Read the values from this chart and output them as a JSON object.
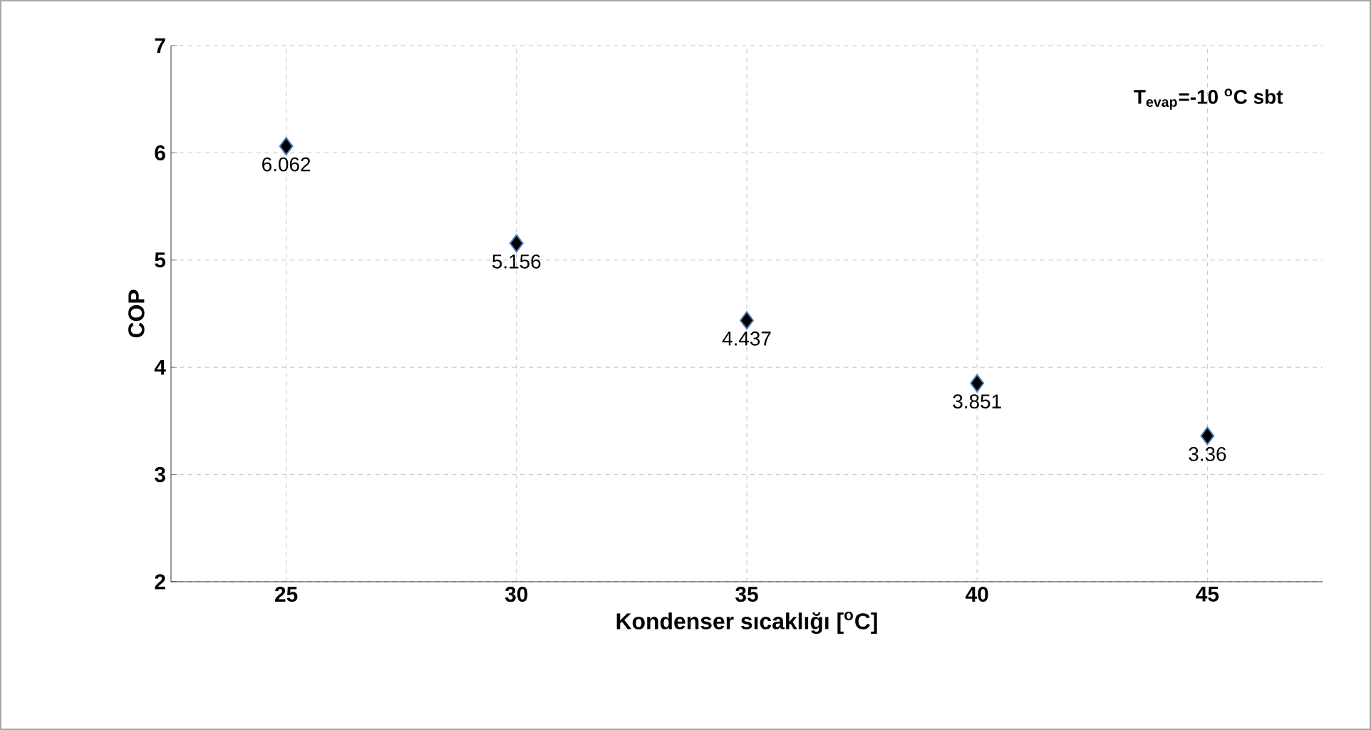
{
  "chart_data": {
    "type": "scatter",
    "xlabel": "Kondenser sıcaklığı [$^{o}$C]",
    "ylabel": "COP",
    "categories": [
      "25",
      "30",
      "35",
      "40",
      "45"
    ],
    "values": [
      6.062,
      5.156,
      4.437,
      3.851,
      3.36
    ],
    "color": "#000000",
    "marker": "diamond",
    "data_labels": true,
    "ylim": [
      2,
      7
    ],
    "yticks": [
      2,
      3,
      4,
      5,
      6,
      7
    ],
    "grid": true,
    "annotations": [
      "T$_{evap}$=-10 $^{o}$C sbt"
    ]
  }
}
